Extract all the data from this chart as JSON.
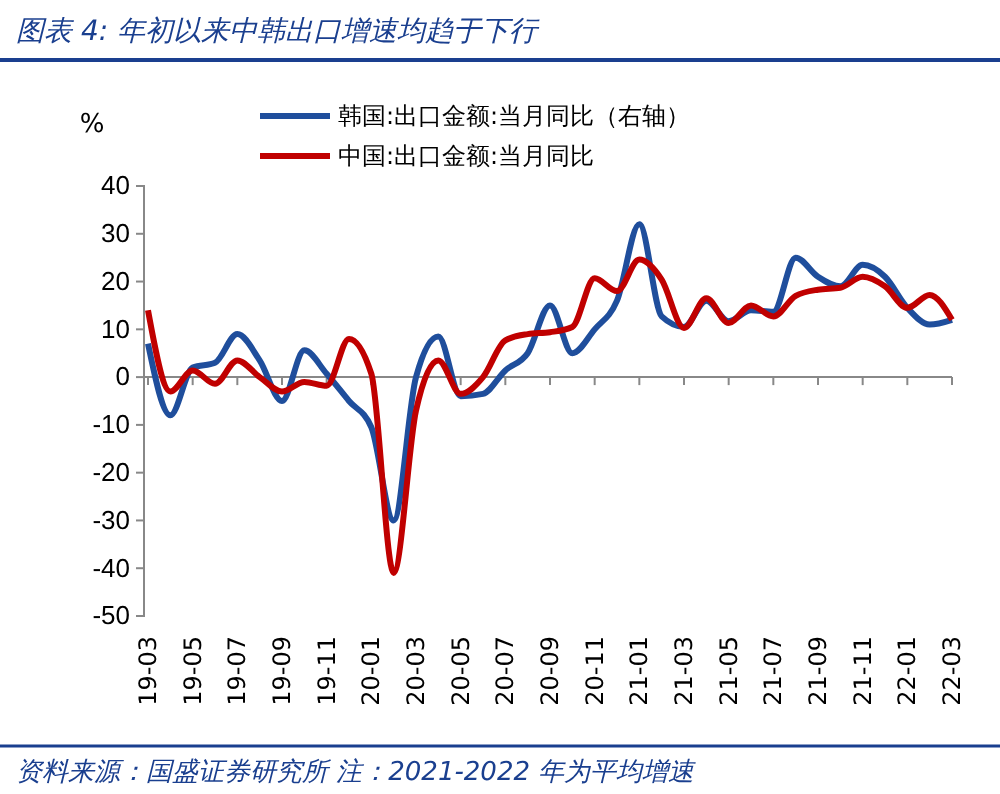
{
  "chart_data": {
    "type": "line",
    "title": "图表 4: 年初以来中韩出口增速均趋于下行",
    "ylabel": "%",
    "categories": [
      "19-03",
      null,
      "19-05",
      null,
      "19-07",
      null,
      "19-09",
      null,
      "19-11",
      null,
      "20-01",
      null,
      "20-03",
      null,
      "20-05",
      null,
      "20-07",
      null,
      "20-09",
      null,
      "20-11",
      null,
      "21-01",
      null,
      "21-03",
      null,
      "21-05",
      null,
      "21-07",
      null,
      "21-09",
      null,
      "21-11",
      null,
      "22-01",
      null,
      "22-03"
    ],
    "series": [
      {
        "name": "韩国:出口金额:当月同比（右轴）",
        "color": "#1f4e9c",
        "values": [
          7,
          -8,
          2,
          3,
          9,
          3.5,
          -5,
          5.6,
          0.7,
          -5,
          -10.5,
          -30,
          0,
          8.5,
          -4,
          -3.5,
          1.4,
          5,
          15,
          5,
          10,
          16,
          32,
          12.7,
          10.5,
          16,
          11.7,
          14,
          13.7,
          25,
          21,
          19,
          23.5,
          21,
          14.5,
          11,
          12
        ]
      },
      {
        "name": "中国:出口金额:当月同比",
        "color": "#c00000",
        "values": [
          14,
          -3,
          1.4,
          -1.4,
          3.5,
          0,
          -3,
          -1,
          -1.8,
          8,
          0.7,
          -41,
          -7,
          3.5,
          -3.5,
          0,
          7.7,
          9,
          9.4,
          10.5,
          20.7,
          18,
          24.6,
          20.4,
          10.3,
          16.5,
          11.3,
          15,
          12.7,
          17,
          18.3,
          18.7,
          21,
          19,
          14.5,
          17.2,
          12
        ]
      }
    ],
    "ylim": [
      -50,
      40
    ],
    "yticks": [
      -50,
      -40,
      -30,
      -20,
      -10,
      0,
      10,
      20,
      30,
      40
    ],
    "legend": "top",
    "marker": "none",
    "line_style": "solid",
    "annotations": [
      "资料来源：国盛证券研究所 注：2021-2022 年为平均增速"
    ]
  }
}
